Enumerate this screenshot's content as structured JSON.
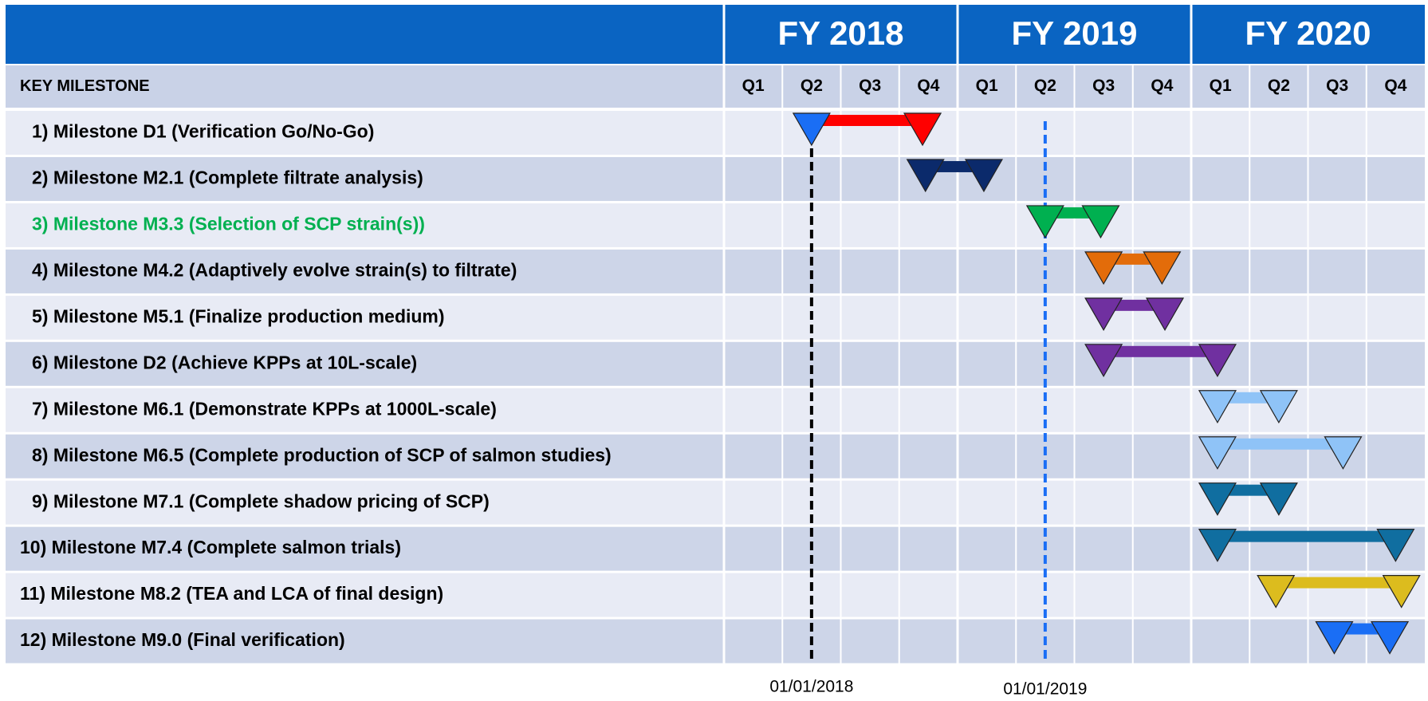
{
  "chart_data": {
    "type": "gantt",
    "header_label": "KEY MILESTONE",
    "periods": [
      {
        "label": "FY 2018",
        "quarters": [
          "Q1",
          "Q2",
          "Q3",
          "Q4"
        ]
      },
      {
        "label": "FY 2019",
        "quarters": [
          "Q1",
          "Q2",
          "Q3",
          "Q4"
        ]
      },
      {
        "label": "FY 2020",
        "quarters": [
          "Q1",
          "Q2",
          "Q3",
          "Q4"
        ]
      }
    ],
    "xlim": [
      0,
      12
    ],
    "tasks": [
      {
        "name": "1) Milestone D1 (Verification Go/No-Go)",
        "start": 1.5,
        "end": 3.4,
        "color": "#ff0000",
        "start_color": "#1a6ef5"
      },
      {
        "name": "2) Milestone M2.1 (Complete filtrate analysis)",
        "start": 3.45,
        "end": 4.45,
        "color": "#0b2a6b"
      },
      {
        "name": "3) Milestone M3.3 (Selection of SCP strain(s))",
        "start": 5.5,
        "end": 6.45,
        "color": "#00b050",
        "label_color": "#00b050"
      },
      {
        "name": "4) Milestone M4.2 (Adaptively evolve strain(s) to filtrate)",
        "start": 6.5,
        "end": 7.5,
        "color": "#e36c0a"
      },
      {
        "name": "5) Milestone M5.1 (Finalize production medium)",
        "start": 6.5,
        "end": 7.55,
        "color": "#7030a0"
      },
      {
        "name": "6) Milestone D2 (Achieve KPPs at 10L-scale)",
        "start": 6.5,
        "end": 8.45,
        "color": "#7030a0"
      },
      {
        "name": "7) Milestone M6.1 (Demonstrate KPPs at 1000L-scale)",
        "start": 8.45,
        "end": 9.5,
        "color": "#8fc3f7"
      },
      {
        "name": "8) Milestone M6.5 (Complete production of SCP of salmon studies)",
        "start": 8.45,
        "end": 10.6,
        "color": "#8fc3f7"
      },
      {
        "name": "9) Milestone M7.1 (Complete shadow pricing of SCP)",
        "start": 8.45,
        "end": 9.5,
        "color": "#106ea0"
      },
      {
        "name": "10) Milestone M7.4 (Complete salmon trials)",
        "start": 8.45,
        "end": 11.5,
        "color": "#106ea0"
      },
      {
        "name": "11) Milestone M8.2 (TEA and LCA of final design)",
        "start": 9.45,
        "end": 11.6,
        "color": "#dcbc1e"
      },
      {
        "name": "12) Milestone M9.0 (Final verification)",
        "start": 10.45,
        "end": 11.4,
        "color": "#1a6ef5"
      }
    ],
    "markers": [
      {
        "value": 1.5,
        "label": "01/01/2018",
        "color": "#000000"
      },
      {
        "value": 5.5,
        "label": "01/01/2019",
        "color": "#1a6ef5"
      }
    ]
  }
}
